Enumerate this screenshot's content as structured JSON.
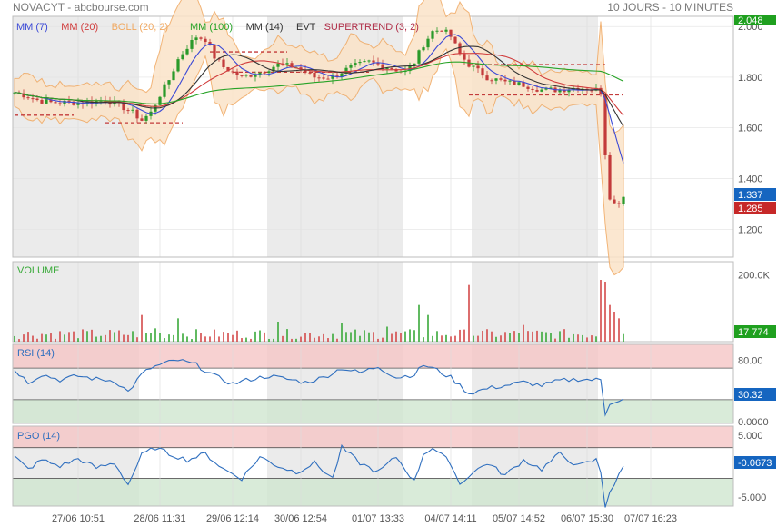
{
  "header": {
    "symbol_source": "NOVACYT - abcbourse.com",
    "period": "10 JOURS - 10 MINUTES"
  },
  "legend": [
    {
      "label": "MM (7)",
      "color": "#3b49d6"
    },
    {
      "label": "MM (20)",
      "color": "#d03b3b"
    },
    {
      "label": "BOLL (20, 2)",
      "color": "#f0a860"
    },
    {
      "label": "MM (100)",
      "color": "#27a327"
    },
    {
      "label": "MM (14)",
      "color": "#333333"
    },
    {
      "label": "EVT",
      "color": "#333333"
    },
    {
      "label": "SUPERTREND (3, 2)",
      "color": "#b0304a"
    }
  ],
  "colors": {
    "shade": "#ebebeb",
    "grid": "#f0f0f0",
    "candle_up": "#2a9a2a",
    "candle_down": "#c33b3b",
    "volume_up": "#3aaa3a",
    "volume_down": "#d44a4a",
    "rsi_line": "#2f6fbf",
    "overbought_fill": "#f5c6c6",
    "oversold_fill": "#cfe6cf",
    "last_price_blue": "#1565c0",
    "last_price_red": "#c62828",
    "last_volume_green": "#1fa01f"
  },
  "chart_data": [
    {
      "type": "candlestick",
      "title": "NOVACYT - abcbourse.com",
      "x_tick_labels": [
        "27/06 10:51",
        "28/06 11:31",
        "29/06 12:14",
        "30/06 12:54",
        "01/07 13:33",
        "04/07 14:11",
        "05/07 14:52",
        "06/07 15:30",
        "07/07 16:23"
      ],
      "y_ticks": [
        "2.000",
        "1.800",
        "1.600",
        "1.400",
        "1.200"
      ],
      "ylim": [
        1.09,
        2.04
      ],
      "grid": true,
      "top_label": "2.048",
      "last_labels": {
        "blue": "1.337",
        "red": "1.285"
      },
      "close_path": [
        [
          0,
          1.74
        ],
        [
          2,
          1.73
        ],
        [
          5,
          1.71
        ],
        [
          8,
          1.7
        ],
        [
          12,
          1.7
        ],
        [
          16,
          1.7
        ],
        [
          20,
          1.71
        ],
        [
          23,
          1.69
        ],
        [
          26,
          1.66
        ],
        [
          28,
          1.63
        ],
        [
          30,
          1.66
        ],
        [
          32,
          1.73
        ],
        [
          34,
          1.79
        ],
        [
          36,
          1.87
        ],
        [
          38,
          1.92
        ],
        [
          40,
          1.96
        ],
        [
          42,
          1.95
        ],
        [
          44,
          1.88
        ],
        [
          46,
          1.84
        ],
        [
          50,
          1.8
        ],
        [
          54,
          1.82
        ],
        [
          58,
          1.85
        ],
        [
          62,
          1.84
        ],
        [
          66,
          1.8
        ],
        [
          70,
          1.8
        ],
        [
          74,
          1.84
        ],
        [
          78,
          1.86
        ],
        [
          82,
          1.84
        ],
        [
          86,
          1.82
        ],
        [
          88,
          1.86
        ],
        [
          90,
          1.93
        ],
        [
          92,
          1.98
        ],
        [
          94,
          1.99
        ],
        [
          96,
          1.96
        ],
        [
          98,
          1.89
        ],
        [
          100,
          1.85
        ],
        [
          104,
          1.8
        ],
        [
          108,
          1.78
        ],
        [
          112,
          1.77
        ],
        [
          116,
          1.75
        ],
        [
          120,
          1.75
        ],
        [
          124,
          1.76
        ],
        [
          128,
          1.75
        ],
        [
          129,
          1.74
        ],
        [
          130,
          1.5
        ],
        [
          131,
          1.33
        ],
        [
          132,
          1.3
        ],
        [
          133,
          1.31
        ],
        [
          134,
          1.33
        ]
      ],
      "supertrend_levels": [
        {
          "from": 0,
          "to": 13,
          "value": 1.65,
          "color": "#c33b3b"
        },
        {
          "from": 20,
          "to": 37,
          "value": 1.62,
          "color": "#c33b3b"
        },
        {
          "from": 43,
          "to": 60,
          "value": 1.9,
          "color": "#c33b3b"
        },
        {
          "from": 48,
          "to": 78,
          "value": 1.82,
          "color": "#c33b3b"
        },
        {
          "from": 100,
          "to": 130,
          "value": 1.85,
          "color": "#c33b3b"
        },
        {
          "from": 100,
          "to": 134,
          "value": 1.73,
          "color": "#c33b3b"
        }
      ]
    },
    {
      "type": "bar",
      "title": "VOLUME",
      "y_ticks": [
        "200.0K"
      ],
      "last_label": "17 774",
      "ylim": [
        0,
        240000
      ],
      "spikes": [
        [
          28,
          80000
        ],
        [
          31,
          40000
        ],
        [
          36,
          70000
        ],
        [
          58,
          60000
        ],
        [
          72,
          55000
        ],
        [
          82,
          45000
        ],
        [
          89,
          110000
        ],
        [
          91,
          80000
        ],
        [
          100,
          170000
        ],
        [
          112,
          50000
        ],
        [
          129,
          290000
        ],
        [
          130,
          180000
        ],
        [
          131,
          110000
        ],
        [
          132,
          90000
        ],
        [
          133,
          70000
        ]
      ]
    },
    {
      "type": "line",
      "title": "RSI (14)",
      "y_ticks": [
        "80.00",
        "0.0000"
      ],
      "last_label": "30.32",
      "ylim": [
        0,
        100
      ],
      "zones": {
        "overbought": 70,
        "oversold": 30
      },
      "path": [
        [
          0,
          68
        ],
        [
          3,
          52
        ],
        [
          6,
          62
        ],
        [
          10,
          55
        ],
        [
          14,
          60
        ],
        [
          18,
          56
        ],
        [
          22,
          54
        ],
        [
          25,
          40
        ],
        [
          28,
          62
        ],
        [
          30,
          70
        ],
        [
          33,
          76
        ],
        [
          36,
          80
        ],
        [
          40,
          74
        ],
        [
          44,
          60
        ],
        [
          48,
          50
        ],
        [
          52,
          56
        ],
        [
          56,
          60
        ],
        [
          60,
          56
        ],
        [
          64,
          52
        ],
        [
          68,
          58
        ],
        [
          72,
          70
        ],
        [
          76,
          64
        ],
        [
          80,
          72
        ],
        [
          84,
          58
        ],
        [
          88,
          62
        ],
        [
          90,
          74
        ],
        [
          92,
          70
        ],
        [
          96,
          58
        ],
        [
          98,
          48
        ],
        [
          100,
          38
        ],
        [
          104,
          44
        ],
        [
          108,
          48
        ],
        [
          112,
          52
        ],
        [
          116,
          48
        ],
        [
          120,
          54
        ],
        [
          124,
          56
        ],
        [
          128,
          55
        ],
        [
          129,
          55
        ],
        [
          130,
          12
        ],
        [
          131,
          26
        ],
        [
          132,
          28
        ],
        [
          134,
          30
        ]
      ]
    },
    {
      "type": "line",
      "title": "PGO (14)",
      "y_ticks": [
        "5.000",
        "-5.000"
      ],
      "last_label": "-0.0673",
      "ylim": [
        -6.5,
        6.5
      ],
      "zones": {
        "overbought": 3,
        "oversold": -2
      },
      "path": [
        [
          0,
          1.5
        ],
        [
          3,
          -0.5
        ],
        [
          6,
          1.0
        ],
        [
          10,
          0.0
        ],
        [
          14,
          1.2
        ],
        [
          18,
          -0.3
        ],
        [
          22,
          0.5
        ],
        [
          25,
          -3.0
        ],
        [
          28,
          1.8
        ],
        [
          31,
          3.0
        ],
        [
          34,
          2.0
        ],
        [
          38,
          1.0
        ],
        [
          42,
          2.0
        ],
        [
          46,
          -0.5
        ],
        [
          50,
          -2.0
        ],
        [
          54,
          1.5
        ],
        [
          58,
          0.0
        ],
        [
          62,
          -1.0
        ],
        [
          66,
          0.5
        ],
        [
          70,
          -2.0
        ],
        [
          72,
          3.0
        ],
        [
          76,
          0.5
        ],
        [
          80,
          -1.0
        ],
        [
          84,
          1.5
        ],
        [
          88,
          -2.5
        ],
        [
          90,
          2.0
        ],
        [
          92,
          3.0
        ],
        [
          96,
          0.5
        ],
        [
          98,
          -3.0
        ],
        [
          100,
          -1.5
        ],
        [
          104,
          0.5
        ],
        [
          108,
          -1.5
        ],
        [
          112,
          1.0
        ],
        [
          116,
          -0.5
        ],
        [
          120,
          2.0
        ],
        [
          124,
          0.0
        ],
        [
          128,
          1.0
        ],
        [
          129,
          -1.0
        ],
        [
          130,
          -6.5
        ],
        [
          131,
          -4.0
        ],
        [
          132,
          -3.0
        ],
        [
          134,
          -0.1
        ]
      ]
    }
  ]
}
